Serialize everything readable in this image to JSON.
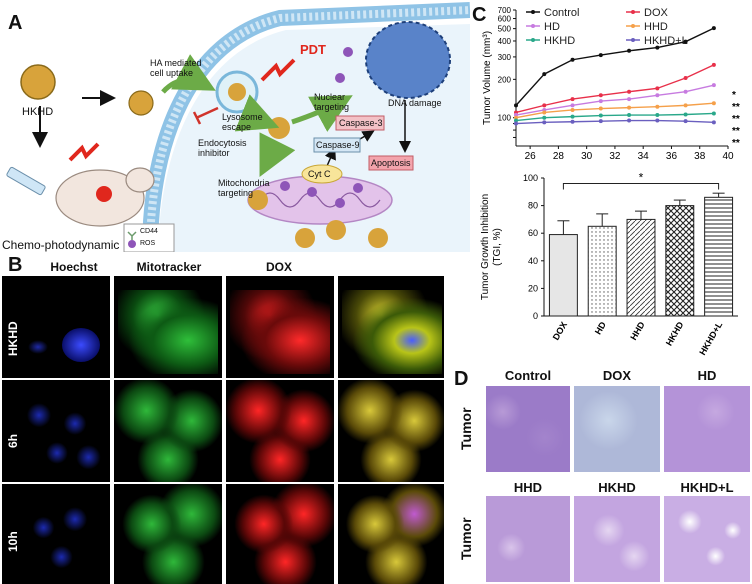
{
  "panels": {
    "a": "A",
    "b": "B",
    "c": "C",
    "d": "D"
  },
  "schematic": {
    "hkhd_label": "HKHD",
    "chemo_label": "Chemo-photodynamic",
    "uptake_label": "HA mediated\ncell uptake",
    "pdt_label": "PDT",
    "lysosome_label": "Lysosome\nescape",
    "endocytosis_label": "Endocytosis\ninhibitor",
    "nuclear_label": "Nuclear\ntargeting",
    "dna_label": "DNA damage",
    "casp3_label": "Caspase-3",
    "casp9_label": "Caspase-9",
    "cytc_label": "Cyt C",
    "apoptosis_label": "Apoptosis",
    "mito_label": "Mitochondria\ntargeting",
    "legend_cd44": "CD44",
    "legend_ros": "ROS"
  },
  "microscopy": {
    "columns": [
      "Hoechst",
      "Mitotracker",
      "DOX"
    ],
    "rows": [
      "HKHD",
      "6h",
      "10h"
    ]
  },
  "tissue": {
    "row_label": "Tumor",
    "top": [
      "Control",
      "DOX",
      "HD"
    ],
    "bottom": [
      "HHD",
      "HKHD",
      "HKHD+L"
    ]
  },
  "chart_data": [
    {
      "type": "line",
      "ylabel": "Tumor Volume (mm³)",
      "x": [
        25,
        27,
        29,
        31,
        33,
        35,
        37,
        39
      ],
      "xlim": [
        25,
        40
      ],
      "ylim": [
        60,
        700
      ],
      "xticks": [
        26,
        28,
        30,
        32,
        34,
        36,
        38,
        40
      ],
      "yticks": [
        70,
        80,
        90,
        100,
        200,
        300,
        400,
        500,
        600,
        700
      ],
      "yscale": "log",
      "legend": "top",
      "series": [
        {
          "name": "Control",
          "color": "#111111",
          "values": [
            125,
            220,
            285,
            310,
            335,
            355,
            395,
            505
          ]
        },
        {
          "name": "DOX",
          "color": "#e8304a",
          "values": [
            110,
            125,
            140,
            150,
            160,
            170,
            205,
            260
          ]
        },
        {
          "name": "HD",
          "color": "#c77be0",
          "values": [
            105,
            115,
            125,
            135,
            140,
            150,
            160,
            180
          ]
        },
        {
          "name": "HHD",
          "color": "#f5a04a",
          "values": [
            100,
            110,
            115,
            118,
            120,
            122,
            125,
            130
          ]
        },
        {
          "name": "HKHD",
          "color": "#2aa88a",
          "values": [
            95,
            100,
            102,
            104,
            105,
            105,
            106,
            108
          ]
        },
        {
          "name": "HKHD+L",
          "color": "#6a5fbf",
          "values": [
            90,
            92,
            93,
            94,
            95,
            95,
            94,
            92
          ]
        }
      ],
      "annotations": [
        "*",
        "**",
        "**",
        "**",
        "**"
      ]
    },
    {
      "type": "bar",
      "ylabel": "Tumor Growth Inhibition\n(TGI, %)",
      "categories": [
        "DOX",
        "HD",
        "HHD",
        "HKHD",
        "HKHD+L"
      ],
      "values": [
        59,
        65,
        70,
        80,
        86
      ],
      "errors": [
        10,
        9,
        6,
        4,
        3
      ],
      "ylim": [
        0,
        100
      ],
      "yticks": [
        0,
        20,
        40,
        60,
        80,
        100
      ],
      "significance": "*"
    }
  ]
}
